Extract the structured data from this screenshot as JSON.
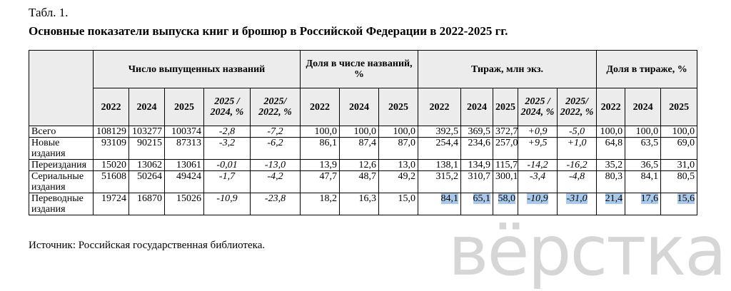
{
  "header": {
    "label": "Табл. 1.",
    "title": "Основные показатели выпуска книг и брошюр в Российской Федерации в 2022-2025 гг."
  },
  "table": {
    "groups": [
      "Число выпущенных названий",
      "Доля в числе названий, %",
      "Тираж, млн экз.",
      "Доля в тираже, %"
    ],
    "columns": [
      "2022",
      "2024",
      "2025",
      "2025 / 2024, %",
      "2025/ 2022, %",
      "2022",
      "2024",
      "2025",
      "2022",
      "2024",
      "2025",
      "2025 / 2024, %",
      "2025/ 2022, %",
      "2022",
      "2024",
      "2025"
    ],
    "rows": [
      [
        "Всего",
        "108129",
        "103277",
        "100374",
        "-2,8",
        "-7,2",
        "100,0",
        "100,0",
        "100,0",
        "392,5",
        "369,5",
        "372,7",
        "+0,9",
        "-5,0",
        "100,0",
        "100,0",
        "100,0"
      ],
      [
        "Новые издания",
        "93109",
        "90215",
        "87313",
        "-3,2",
        "-6,2",
        "86,1",
        "87,4",
        "87,0",
        "254,4",
        "234,6",
        "257,0",
        "+9,5",
        "+1,0",
        "64,8",
        "63,5",
        "69,0"
      ],
      [
        "Переиздания",
        "15020",
        "13062",
        "13061",
        "-0,01",
        "-13,0",
        "13,9",
        "12,6",
        "13,0",
        "138,1",
        "134,9",
        "115,7",
        "-14,2",
        "-16,2",
        "35,2",
        "36,5",
        "31,0"
      ],
      [
        "Сериальные издания",
        "51608",
        "50264",
        "49424",
        "-1,7",
        "-4,2",
        "47,7",
        "48,7",
        "49,2",
        "315,2",
        "310,7",
        "300,1",
        "-3,4",
        "-4,8",
        "80,3",
        "84,1",
        "80,5"
      ],
      [
        "Переводные издания",
        "19724",
        "16870",
        "15026",
        "-10,9",
        "-23,8",
        "18,2",
        "16,3",
        "15,0",
        "84,1",
        "65,1",
        "58,0",
        "-10,9",
        "-31,0",
        "21,4",
        "17,6",
        "15,6"
      ]
    ]
  },
  "source": "Источник: Российская государственная библиотека.",
  "watermark": "вёрстка"
}
